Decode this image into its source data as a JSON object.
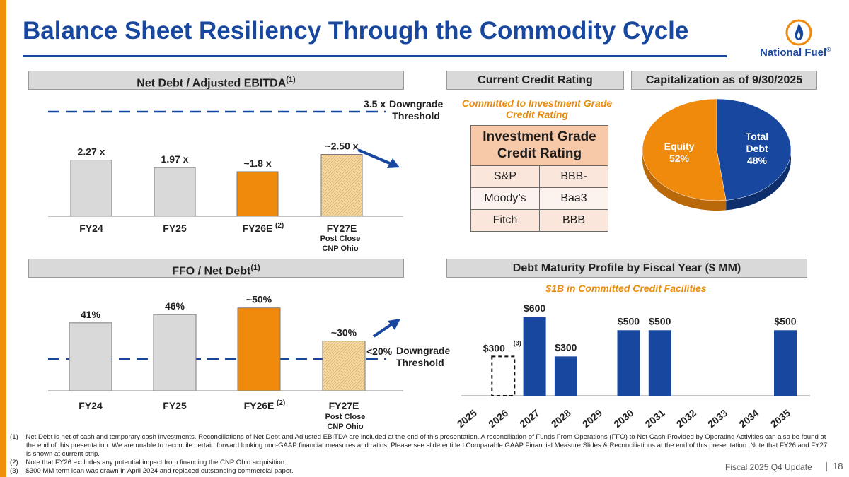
{
  "header": {
    "title": "Balance Sheet Resiliency Through the Commodity Cycle",
    "logo_text": "National Fuel",
    "logo_registered": "®"
  },
  "net_debt_panel": {
    "heading": "Net Debt / Adjusted EBITDA",
    "heading_sup": "(1)",
    "threshold_value": "3.5 x",
    "threshold_label_line1": "Downgrade",
    "threshold_label_line2": "Threshold",
    "post_close_line1": "Post Close",
    "post_close_line2": "CNP Ohio"
  },
  "ffo_panel": {
    "heading": "FFO / Net Debt",
    "heading_sup": "(1)",
    "threshold_value": "<20%",
    "threshold_label_line1": "Downgrade",
    "threshold_label_line2": "Threshold",
    "post_close_line1": "Post Close",
    "post_close_line2": "CNP Ohio"
  },
  "credit_panel": {
    "heading": "Current Credit Rating",
    "subtitle_line1": "Committed to Investment Grade",
    "subtitle_line2": "Credit Rating",
    "table_header_line1": "Investment Grade",
    "table_header_line2": "Credit Rating",
    "rows": [
      {
        "agency": "S&P",
        "rating": "BBB-"
      },
      {
        "agency": "Moody’s",
        "rating": "Baa3"
      },
      {
        "agency": "Fitch",
        "rating": "BBB"
      }
    ]
  },
  "cap_panel": {
    "heading": "Capitalization as of 9/30/2025"
  },
  "maturity_panel": {
    "heading": "Debt Maturity Profile by Fiscal Year ($ MM)",
    "subtitle": "$1B in Committed Credit Facilities"
  },
  "chart_data": [
    {
      "id": "net_debt_ebitda",
      "type": "bar",
      "title": "Net Debt / Adjusted EBITDA",
      "categories": [
        "FY24",
        "FY25",
        "FY26E",
        "FY27E"
      ],
      "category_sups": [
        "",
        "",
        "(2)",
        ""
      ],
      "values": [
        2.27,
        1.97,
        1.8,
        2.5
      ],
      "labels": [
        "2.27 x",
        "1.97 x",
        "~1.8 x",
        "~2.50 x"
      ],
      "fills": [
        "#d9d9d9",
        "#d9d9d9",
        "#ef8a0c",
        "#f4d9a4"
      ],
      "threshold": 3.5,
      "ylim": [
        0,
        4.0
      ]
    },
    {
      "id": "ffo_net_debt",
      "type": "bar",
      "title": "FFO / Net Debt",
      "categories": [
        "FY24",
        "FY25",
        "FY26E",
        "FY27E"
      ],
      "category_sups": [
        "",
        "",
        "(2)",
        ""
      ],
      "values": [
        41,
        46,
        50,
        30
      ],
      "labels": [
        "41%",
        "46%",
        "~50%",
        "~30%"
      ],
      "fills": [
        "#d9d9d9",
        "#d9d9d9",
        "#ef8a0c",
        "#f4d9a4"
      ],
      "threshold": 20,
      "ylim": [
        0,
        55
      ]
    },
    {
      "id": "capitalization",
      "type": "pie",
      "title": "Capitalization as of 9/30/2025",
      "slices": [
        {
          "name": "Total Debt",
          "label_line1": "Total",
          "label_line2": "Debt",
          "value": 48,
          "label_value": "48%",
          "color": "#17479e"
        },
        {
          "name": "Equity",
          "label_line1": "Equity",
          "label_line2": "",
          "value": 52,
          "label_value": "52%",
          "color": "#ef8a0c"
        }
      ]
    },
    {
      "id": "debt_maturity",
      "type": "bar",
      "title": "Debt Maturity Profile by Fiscal Year ($ MM)",
      "categories": [
        "2025",
        "2026",
        "2027",
        "2028",
        "2029",
        "2030",
        "2031",
        "2032",
        "2033",
        "2034",
        "2035"
      ],
      "values": [
        0,
        300,
        600,
        300,
        0,
        500,
        500,
        0,
        0,
        0,
        500
      ],
      "labels": [
        "",
        "$300",
        "$600",
        "$300",
        "",
        "$500",
        "$500",
        "",
        "",
        "",
        "$500"
      ],
      "dashed": [
        false,
        true,
        false,
        false,
        false,
        false,
        false,
        false,
        false,
        false,
        false
      ],
      "note_marker": "(3)",
      "color": "#17479e",
      "ylim": [
        0,
        700
      ]
    }
  ],
  "footnotes": [
    {
      "marker": "(1)",
      "text": "Net Debt is net of cash and temporary cash investments. Reconciliations of Net Debt and Adjusted EBITDA are included at the end of this presentation. A reconciliation of Funds From Operations (FFO) to Net Cash Provided by Operating Activities can also be found at the end of this presentation. We are unable to reconcile certain forward looking non-GAAP financial measures and ratios. Please see slide entitled Comparable GAAP Financial Measure Slides & Reconciliations at the end of this presentation. Note that FY26 and FY27 is shown at current strip."
    },
    {
      "marker": "(2)",
      "text": "Note that FY26 excludes any potential impact from financing the CNP Ohio acquisition."
    },
    {
      "marker": "(3)",
      "text": "$300 MM term loan was drawn in April 2024 and replaced outstanding commercial paper."
    }
  ],
  "footer": {
    "text": "Fiscal 2025 Q4 Update",
    "page": "18"
  }
}
